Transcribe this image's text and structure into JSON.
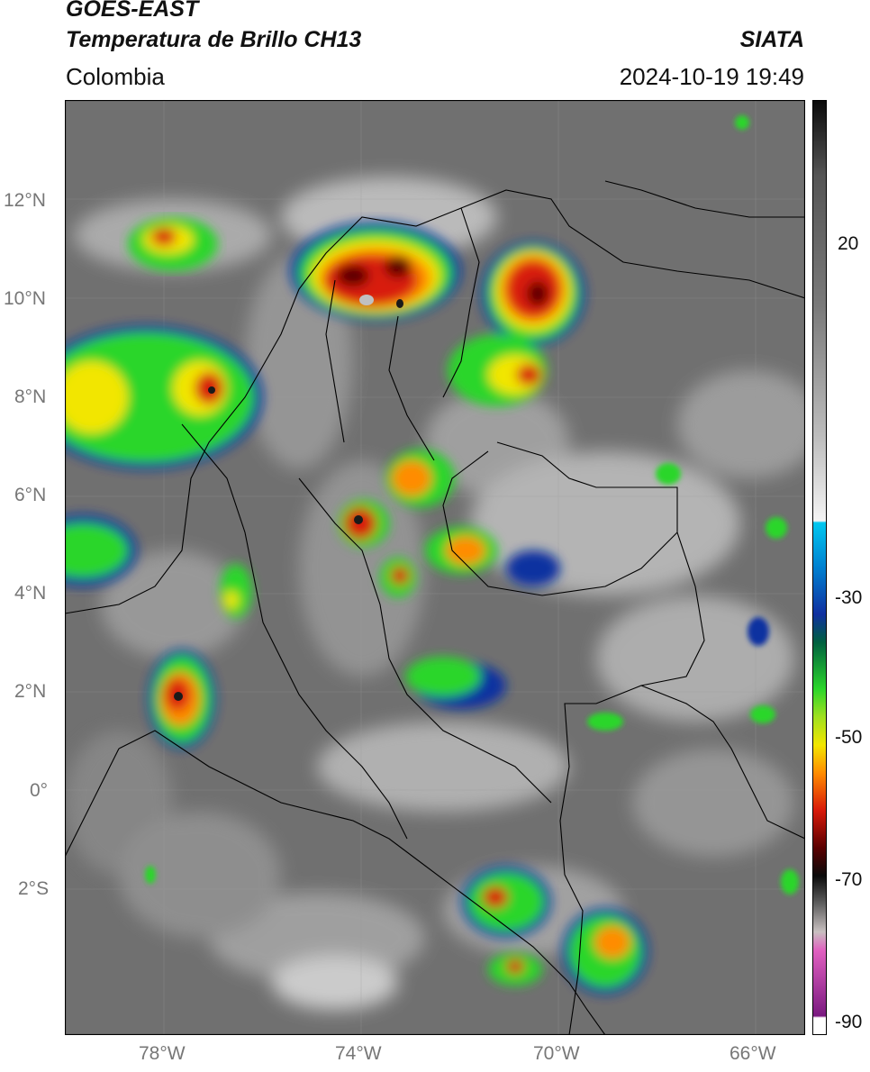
{
  "header": {
    "satellite": "GOES-EAST",
    "product": "Temperatura de Brillo CH13",
    "region": "Colombia",
    "agency": "SIATA",
    "datetime": "2024-10-19 19:49"
  },
  "axes": {
    "lat_ticks": [
      "12°N",
      "10°N",
      "8°N",
      "6°N",
      "4°N",
      "2°N",
      "0°",
      "2°S"
    ],
    "lon_ticks": [
      "78°W",
      "74°W",
      "70°W",
      "66°W"
    ]
  },
  "colorbar": {
    "ticks": [
      "20",
      "-30",
      "-50",
      "-70",
      "-90"
    ],
    "scale_colors": {
      "warm_gray": "#6e6e6e",
      "light": "#f4f4f4",
      "cyan": "#00b8e0",
      "blue": "#1030a0",
      "green": "#2bd62b",
      "yellow": "#f2e600",
      "orange": "#ff8c00",
      "red": "#d81a0a",
      "dark_red": "#5a0000",
      "black": "#0a0a0a",
      "pink": "#e060c0",
      "purple": "#7a1a80"
    }
  }
}
